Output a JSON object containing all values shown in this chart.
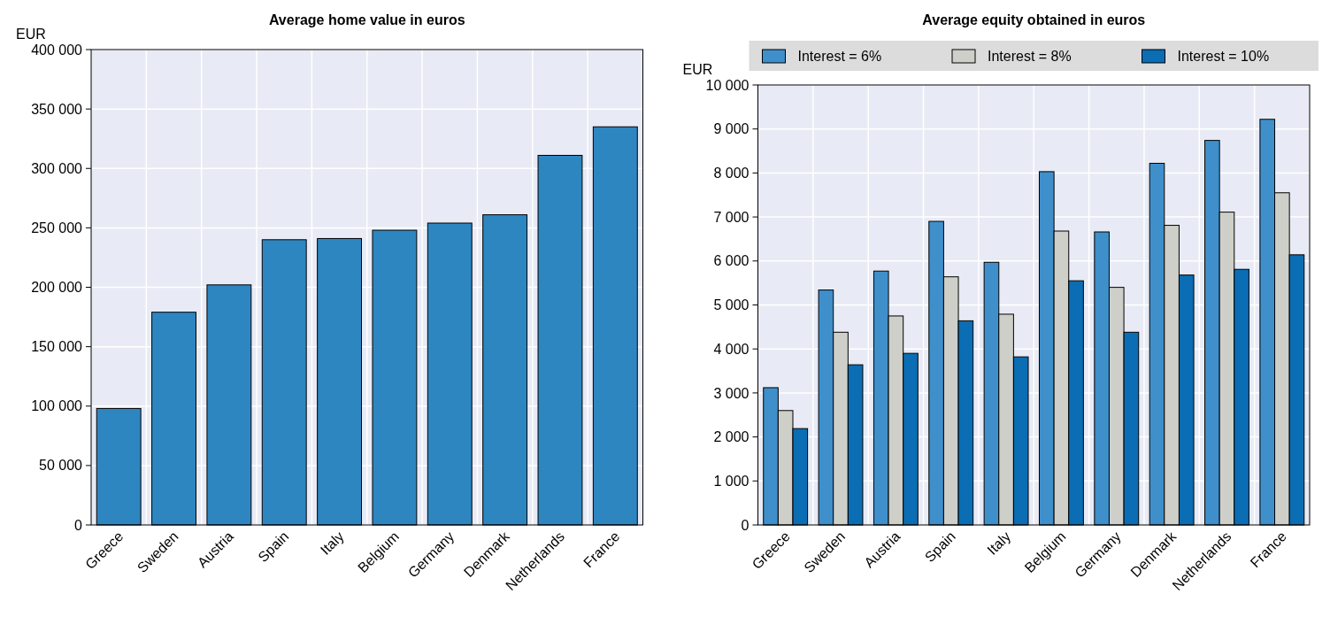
{
  "chart_data": [
    {
      "type": "bar",
      "title": "Average home value in euros",
      "ylabel": "EUR",
      "categories": [
        "Greece",
        "Sweden",
        "Austria",
        "Spain",
        "Italy",
        "Belgium",
        "Germany",
        "Denmark",
        "Netherlands",
        "France"
      ],
      "series": [
        {
          "color": "#2e86c1",
          "values": [
            98000,
            179000,
            202000,
            240000,
            241000,
            248000,
            254000,
            261000,
            311000,
            335000
          ]
        }
      ],
      "ylim": [
        0,
        400000
      ],
      "yticks": [
        0,
        {
          "value": 50000,
          "label": "50 000"
        },
        {
          "value": 100000,
          "label": "100 000"
        },
        {
          "value": 150000,
          "label": "150 000"
        },
        {
          "value": 200000,
          "label": "200 000"
        },
        {
          "value": 250000,
          "label": "250 000"
        },
        {
          "value": 300000,
          "label": "300 000"
        },
        {
          "value": 350000,
          "label": "350 000"
        },
        {
          "value": 400000,
          "label": "400 000"
        }
      ],
      "grid": true
    },
    {
      "type": "bar",
      "title": "Average equity obtained in euros",
      "ylabel": "EUR",
      "categories": [
        "Greece",
        "Sweden",
        "Austria",
        "Spain",
        "Italy",
        "Belgium",
        "Germany",
        "Denmark",
        "Netherlands",
        "France"
      ],
      "series": [
        {
          "name": "Interest = 6%",
          "color": "#3f8fcb",
          "values": [
            3120,
            5340,
            5770,
            6900,
            5970,
            8030,
            6660,
            8220,
            8740,
            9220
          ]
        },
        {
          "name": "Interest = 8%",
          "color": "#cfcfca",
          "values": [
            2600,
            4380,
            4750,
            5640,
            4790,
            6680,
            5400,
            6810,
            7110,
            7550
          ]
        },
        {
          "name": "Interest = 10%",
          "color": "#0b6db3",
          "values": [
            2190,
            3640,
            3900,
            4640,
            3820,
            5550,
            4380,
            5680,
            5810,
            6140
          ]
        }
      ],
      "ylim": [
        0,
        10000
      ],
      "yticks": [
        0,
        {
          "value": 1000,
          "label": "1 000"
        },
        {
          "value": 2000,
          "label": "2 000"
        },
        {
          "value": 3000,
          "label": "3 000"
        },
        {
          "value": 4000,
          "label": "4 000"
        },
        {
          "value": 5000,
          "label": "5 000"
        },
        {
          "value": 6000,
          "label": "6 000"
        },
        {
          "value": 7000,
          "label": "7 000"
        },
        {
          "value": 8000,
          "label": "8 000"
        },
        {
          "value": 9000,
          "label": "9 000"
        },
        {
          "value": 10000,
          "label": "10 000"
        }
      ],
      "grid": true,
      "legend": "top"
    }
  ]
}
